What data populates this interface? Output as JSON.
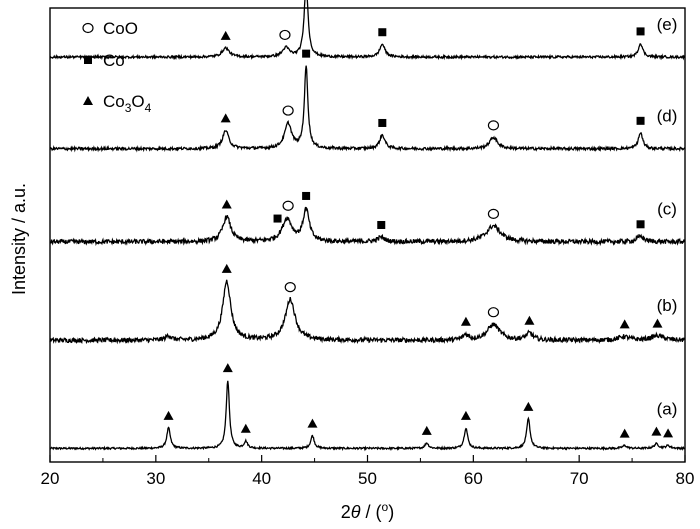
{
  "chart_data": {
    "type": "line",
    "xlabel": "2θ / (°)",
    "ylabel": "Intensity / a.u.",
    "xlim": [
      20,
      80
    ],
    "xticks": [
      20,
      30,
      40,
      50,
      60,
      70,
      80
    ],
    "grid": false,
    "legend_position": "top-left",
    "legend": [
      {
        "marker": "circle-open",
        "label": "CoO"
      },
      {
        "marker": "square",
        "label": "Co"
      },
      {
        "marker": "triangle",
        "label": "Co3O4"
      }
    ],
    "series": [
      {
        "name": "(a)",
        "baseline": 0.03,
        "noise": 0.002,
        "peaks": [
          [
            31.2,
            0.045,
            0.2
          ],
          [
            36.8,
            0.15,
            0.18
          ],
          [
            38.5,
            0.015,
            0.2
          ],
          [
            44.8,
            0.028,
            0.2
          ],
          [
            55.6,
            0.012,
            0.2
          ],
          [
            59.3,
            0.045,
            0.2
          ],
          [
            65.2,
            0.065,
            0.2
          ],
          [
            74.3,
            0.006,
            0.25
          ],
          [
            77.3,
            0.01,
            0.25
          ],
          [
            78.4,
            0.006,
            0.25
          ]
        ],
        "markers": [
          [
            31.2,
            "triangle"
          ],
          [
            36.8,
            "triangle"
          ],
          [
            38.5,
            "triangle"
          ],
          [
            44.8,
            "triangle"
          ],
          [
            55.6,
            "triangle"
          ],
          [
            59.3,
            "triangle"
          ],
          [
            65.2,
            "triangle"
          ],
          [
            74.3,
            "triangle"
          ],
          [
            77.3,
            "triangle"
          ],
          [
            78.4,
            "triangle"
          ]
        ]
      },
      {
        "name": "(b)",
        "baseline": 0.268,
        "noise": 0.005,
        "peaks": [
          [
            31.2,
            0.01,
            0.3
          ],
          [
            36.7,
            0.13,
            0.45
          ],
          [
            42.7,
            0.09,
            0.55
          ],
          [
            59.3,
            0.012,
            0.3
          ],
          [
            61.9,
            0.035,
            0.7
          ],
          [
            65.3,
            0.015,
            0.4
          ],
          [
            74.2,
            0.008,
            0.6
          ],
          [
            77.4,
            0.01,
            0.7
          ]
        ],
        "markers": [
          [
            36.7,
            "triangle"
          ],
          [
            42.7,
            "circle-open"
          ],
          [
            59.3,
            "triangle"
          ],
          [
            61.9,
            "circle-open"
          ],
          [
            65.3,
            "triangle"
          ],
          [
            74.3,
            "triangle"
          ],
          [
            77.4,
            "triangle"
          ]
        ]
      },
      {
        "name": "(c)",
        "baseline": 0.485,
        "noise": 0.005,
        "peaks": [
          [
            36.7,
            0.055,
            0.45
          ],
          [
            42.4,
            0.05,
            0.55
          ],
          [
            44.2,
            0.07,
            0.35
          ],
          [
            51.3,
            0.01,
            0.4
          ],
          [
            61.9,
            0.035,
            0.8
          ],
          [
            75.8,
            0.012,
            0.4
          ]
        ],
        "markers": [
          [
            36.7,
            "triangle"
          ],
          [
            42.5,
            "circle-open"
          ],
          [
            44.2,
            "square"
          ],
          [
            41.5,
            "square"
          ],
          [
            51.3,
            "square"
          ],
          [
            61.9,
            "circle-open"
          ],
          [
            75.8,
            "square"
          ]
        ]
      },
      {
        "name": "(d)",
        "baseline": 0.69,
        "noise": 0.003,
        "peaks": [
          [
            36.6,
            0.04,
            0.35
          ],
          [
            42.5,
            0.055,
            0.4
          ],
          [
            44.2,
            0.18,
            0.2
          ],
          [
            51.4,
            0.03,
            0.3
          ],
          [
            61.9,
            0.025,
            0.45
          ],
          [
            75.8,
            0.035,
            0.25
          ]
        ],
        "markers": [
          [
            36.6,
            "triangle"
          ],
          [
            42.5,
            "circle-open"
          ],
          [
            44.2,
            "square"
          ],
          [
            51.4,
            "square"
          ],
          [
            61.9,
            "circle-open"
          ],
          [
            75.8,
            "square"
          ]
        ]
      },
      {
        "name": "(e)",
        "baseline": 0.892,
        "noise": 0.0025,
        "peaks": [
          [
            36.6,
            0.02,
            0.4
          ],
          [
            42.3,
            0.02,
            0.4
          ],
          [
            44.2,
            0.16,
            0.22
          ],
          [
            51.4,
            0.028,
            0.3
          ],
          [
            75.8,
            0.03,
            0.25
          ]
        ],
        "markers": [
          [
            36.6,
            "triangle"
          ],
          [
            42.2,
            "circle-open"
          ],
          [
            44.2,
            "square"
          ],
          [
            51.4,
            "square"
          ],
          [
            75.8,
            "square"
          ]
        ]
      }
    ]
  }
}
